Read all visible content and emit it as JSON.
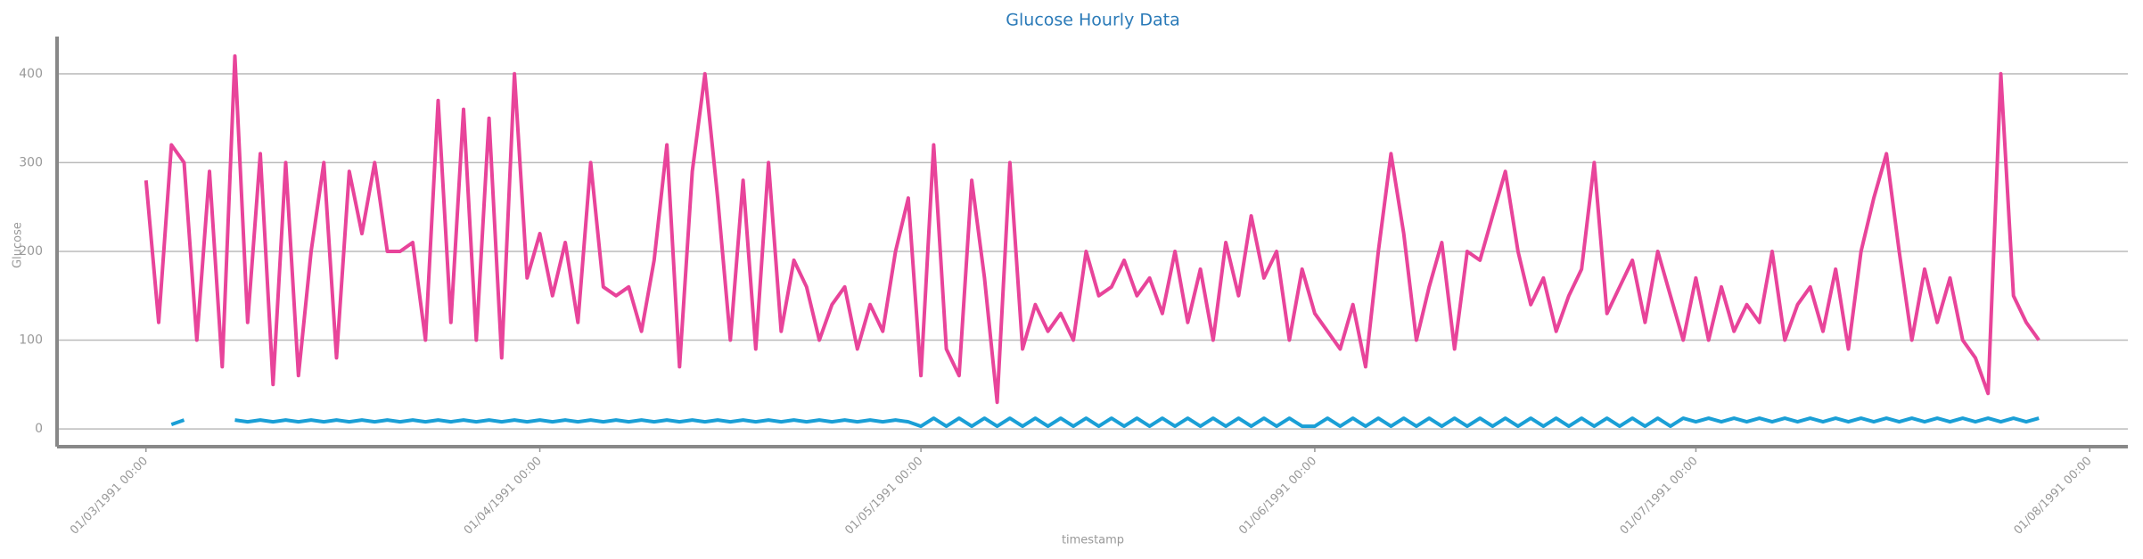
{
  "chart_data": {
    "type": "line",
    "title": "Glucose Hourly Data",
    "x_label": "timestamp",
    "y_label": "Glucose",
    "x": [
      "1991-03-01",
      "1991-03-02",
      "1991-03-03",
      "1991-03-04",
      "1991-03-05",
      "1991-03-06",
      "1991-03-07",
      "1991-03-08",
      "1991-03-09",
      "1991-03-10",
      "1991-03-11",
      "1991-03-12",
      "1991-03-13",
      "1991-03-14",
      "1991-03-15",
      "1991-03-16",
      "1991-03-17",
      "1991-03-18",
      "1991-03-19",
      "1991-03-20",
      "1991-03-21",
      "1991-03-22",
      "1991-03-23",
      "1991-03-24",
      "1991-03-25",
      "1991-03-26",
      "1991-03-27",
      "1991-03-28",
      "1991-03-29",
      "1991-03-30",
      "1991-03-31",
      "1991-04-01",
      "1991-04-02",
      "1991-04-03",
      "1991-04-04",
      "1991-04-05",
      "1991-04-06",
      "1991-04-07",
      "1991-04-08",
      "1991-04-09",
      "1991-04-10",
      "1991-04-11",
      "1991-04-12",
      "1991-04-13",
      "1991-04-14",
      "1991-04-15",
      "1991-04-16",
      "1991-04-17",
      "1991-04-18",
      "1991-04-19",
      "1991-04-20",
      "1991-04-21",
      "1991-04-22",
      "1991-04-23",
      "1991-04-24",
      "1991-04-25",
      "1991-04-26",
      "1991-04-27",
      "1991-04-28",
      "1991-04-29",
      "1991-04-30",
      "1991-05-01",
      "1991-05-02",
      "1991-05-03",
      "1991-05-04",
      "1991-05-05",
      "1991-05-06",
      "1991-05-07",
      "1991-05-08",
      "1991-05-09",
      "1991-05-10",
      "1991-05-11",
      "1991-05-12",
      "1991-05-13",
      "1991-05-14",
      "1991-05-15",
      "1991-05-16",
      "1991-05-17",
      "1991-05-18",
      "1991-05-19",
      "1991-05-20",
      "1991-05-21",
      "1991-05-22",
      "1991-05-23",
      "1991-05-24",
      "1991-05-25",
      "1991-05-26",
      "1991-05-27",
      "1991-05-28",
      "1991-05-29",
      "1991-05-30",
      "1991-05-31",
      "1991-06-01",
      "1991-06-02",
      "1991-06-03",
      "1991-06-04",
      "1991-06-05",
      "1991-06-06",
      "1991-06-07",
      "1991-06-08",
      "1991-06-09",
      "1991-06-10",
      "1991-06-11",
      "1991-06-12",
      "1991-06-13",
      "1991-06-14",
      "1991-06-15",
      "1991-06-16",
      "1991-06-17",
      "1991-06-18",
      "1991-06-19",
      "1991-06-20",
      "1991-06-21",
      "1991-06-22",
      "1991-06-23",
      "1991-06-24",
      "1991-06-25",
      "1991-06-26",
      "1991-06-27",
      "1991-06-28",
      "1991-06-29",
      "1991-06-30",
      "1991-07-01",
      "1991-07-02",
      "1991-07-03",
      "1991-07-04",
      "1991-07-05",
      "1991-07-06",
      "1991-07-07",
      "1991-07-08",
      "1991-07-09",
      "1991-07-10",
      "1991-07-11",
      "1991-07-12",
      "1991-07-13",
      "1991-07-14",
      "1991-07-15",
      "1991-07-16",
      "1991-07-17",
      "1991-07-18",
      "1991-07-19",
      "1991-07-20",
      "1991-07-21",
      "1991-07-22",
      "1991-07-23",
      "1991-07-24",
      "1991-07-25",
      "1991-07-26",
      "1991-07-27",
      "1991-07-28"
    ],
    "series": [
      {
        "color": "#e8449a",
        "values": [
          280,
          120,
          320,
          300,
          100,
          290,
          70,
          420,
          120,
          310,
          50,
          300,
          60,
          200,
          300,
          80,
          290,
          220,
          300,
          200,
          200,
          210,
          100,
          370,
          120,
          360,
          100,
          350,
          80,
          400,
          170,
          220,
          150,
          210,
          120,
          300,
          160,
          150,
          160,
          110,
          190,
          320,
          70,
          290,
          400,
          260,
          100,
          280,
          90,
          300,
          110,
          190,
          160,
          100,
          140,
          160,
          90,
          140,
          110,
          200,
          260,
          60,
          320,
          90,
          60,
          280,
          170,
          30,
          300,
          90,
          140,
          110,
          130,
          100,
          200,
          150,
          160,
          190,
          150,
          170,
          130,
          200,
          120,
          180,
          100,
          210,
          150,
          240,
          170,
          200,
          100,
          180,
          130,
          110,
          90,
          140,
          70,
          200,
          310,
          220,
          100,
          160,
          210,
          90,
          200,
          190,
          240,
          290,
          200,
          140,
          170,
          110,
          150,
          180,
          300,
          130,
          160,
          190,
          120,
          200,
          150,
          100,
          170,
          100,
          160,
          110,
          140,
          120,
          200,
          100,
          140,
          160,
          110,
          180,
          90,
          200,
          260,
          310,
          200,
          100,
          180,
          120,
          170,
          100,
          80,
          40,
          400,
          150,
          120,
          100
        ]
      },
      {
        "color": "#1a9fd6",
        "values": [
          null,
          null,
          5,
          10,
          null,
          null,
          null,
          10,
          8,
          10,
          8,
          10,
          8,
          10,
          8,
          10,
          8,
          10,
          8,
          10,
          8,
          10,
          8,
          10,
          8,
          10,
          8,
          10,
          8,
          10,
          8,
          10,
          8,
          10,
          8,
          10,
          8,
          10,
          8,
          10,
          8,
          10,
          8,
          10,
          8,
          10,
          8,
          10,
          8,
          10,
          8,
          10,
          8,
          10,
          8,
          10,
          8,
          10,
          8,
          10,
          8,
          3,
          12,
          3,
          12,
          3,
          12,
          3,
          12,
          3,
          12,
          3,
          12,
          3,
          12,
          3,
          12,
          3,
          12,
          3,
          12,
          3,
          12,
          3,
          12,
          3,
          12,
          3,
          12,
          3,
          12,
          3,
          3,
          12,
          3,
          12,
          3,
          12,
          3,
          12,
          3,
          12,
          3,
          12,
          3,
          12,
          3,
          12,
          3,
          12,
          3,
          12,
          3,
          12,
          3,
          12,
          3,
          12,
          3,
          12,
          3,
          12,
          8,
          12,
          8,
          12,
          8,
          12,
          8,
          12,
          8,
          12,
          8,
          12,
          8,
          12,
          8,
          12,
          8,
          12,
          8,
          12,
          8,
          12,
          8,
          12,
          8,
          12,
          8,
          12
        ]
      }
    ],
    "xlim": [
      "1991-02-22",
      "1991-08-04"
    ],
    "xticks": [
      {
        "value": "1991-03-01",
        "label": "01/03/1991 00:00"
      },
      {
        "value": "1991-04-01",
        "label": "01/04/1991 00:00"
      },
      {
        "value": "1991-05-01",
        "label": "01/05/1991 00:00"
      },
      {
        "value": "1991-06-01",
        "label": "01/06/1991 00:00"
      },
      {
        "value": "1991-07-01",
        "label": "01/07/1991 00:00"
      },
      {
        "value": "1991-08-01",
        "label": "01/08/1991 00:00"
      }
    ],
    "ylim": [
      -20,
      442
    ],
    "yticks": [
      0,
      100,
      200,
      300,
      400
    ],
    "grid": true
  }
}
